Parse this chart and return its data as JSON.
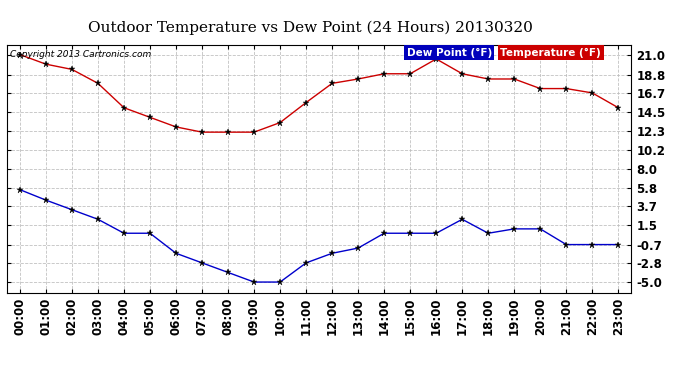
{
  "title": "Outdoor Temperature vs Dew Point (24 Hours) 20130320",
  "copyright": "Copyright 2013 Cartronics.com",
  "x_labels": [
    "00:00",
    "01:00",
    "02:00",
    "03:00",
    "04:00",
    "05:00",
    "06:00",
    "07:00",
    "08:00",
    "09:00",
    "10:00",
    "11:00",
    "12:00",
    "13:00",
    "14:00",
    "15:00",
    "16:00",
    "17:00",
    "18:00",
    "19:00",
    "20:00",
    "21:00",
    "22:00",
    "23:00"
  ],
  "temperature": [
    21.1,
    20.0,
    19.4,
    17.8,
    15.0,
    13.9,
    12.8,
    12.2,
    12.2,
    12.2,
    13.3,
    15.6,
    17.8,
    18.3,
    18.9,
    18.9,
    20.6,
    18.9,
    18.3,
    18.3,
    17.2,
    17.2,
    16.7,
    15.0
  ],
  "dew_point": [
    5.6,
    4.4,
    3.3,
    2.2,
    0.6,
    0.6,
    -1.7,
    -2.8,
    -3.9,
    -5.0,
    -5.0,
    -2.8,
    -1.7,
    -1.1,
    0.6,
    0.6,
    0.6,
    2.2,
    0.6,
    1.1,
    1.1,
    -0.7,
    -0.7,
    -0.7
  ],
  "temp_color": "#cc0000",
  "dew_color": "#0000cc",
  "background_color": "#ffffff",
  "grid_color": "#bbbbbb",
  "y_ticks": [
    -5.0,
    -2.8,
    -0.7,
    1.5,
    3.7,
    5.8,
    8.0,
    10.2,
    12.3,
    14.5,
    16.7,
    18.8,
    21.0
  ],
  "ylim": [
    -6.2,
    22.2
  ],
  "legend_dew_bg": "#0000bb",
  "legend_temp_bg": "#cc0000",
  "legend_text_color": "#ffffff",
  "title_fontsize": 11,
  "tick_fontsize": 8.5
}
